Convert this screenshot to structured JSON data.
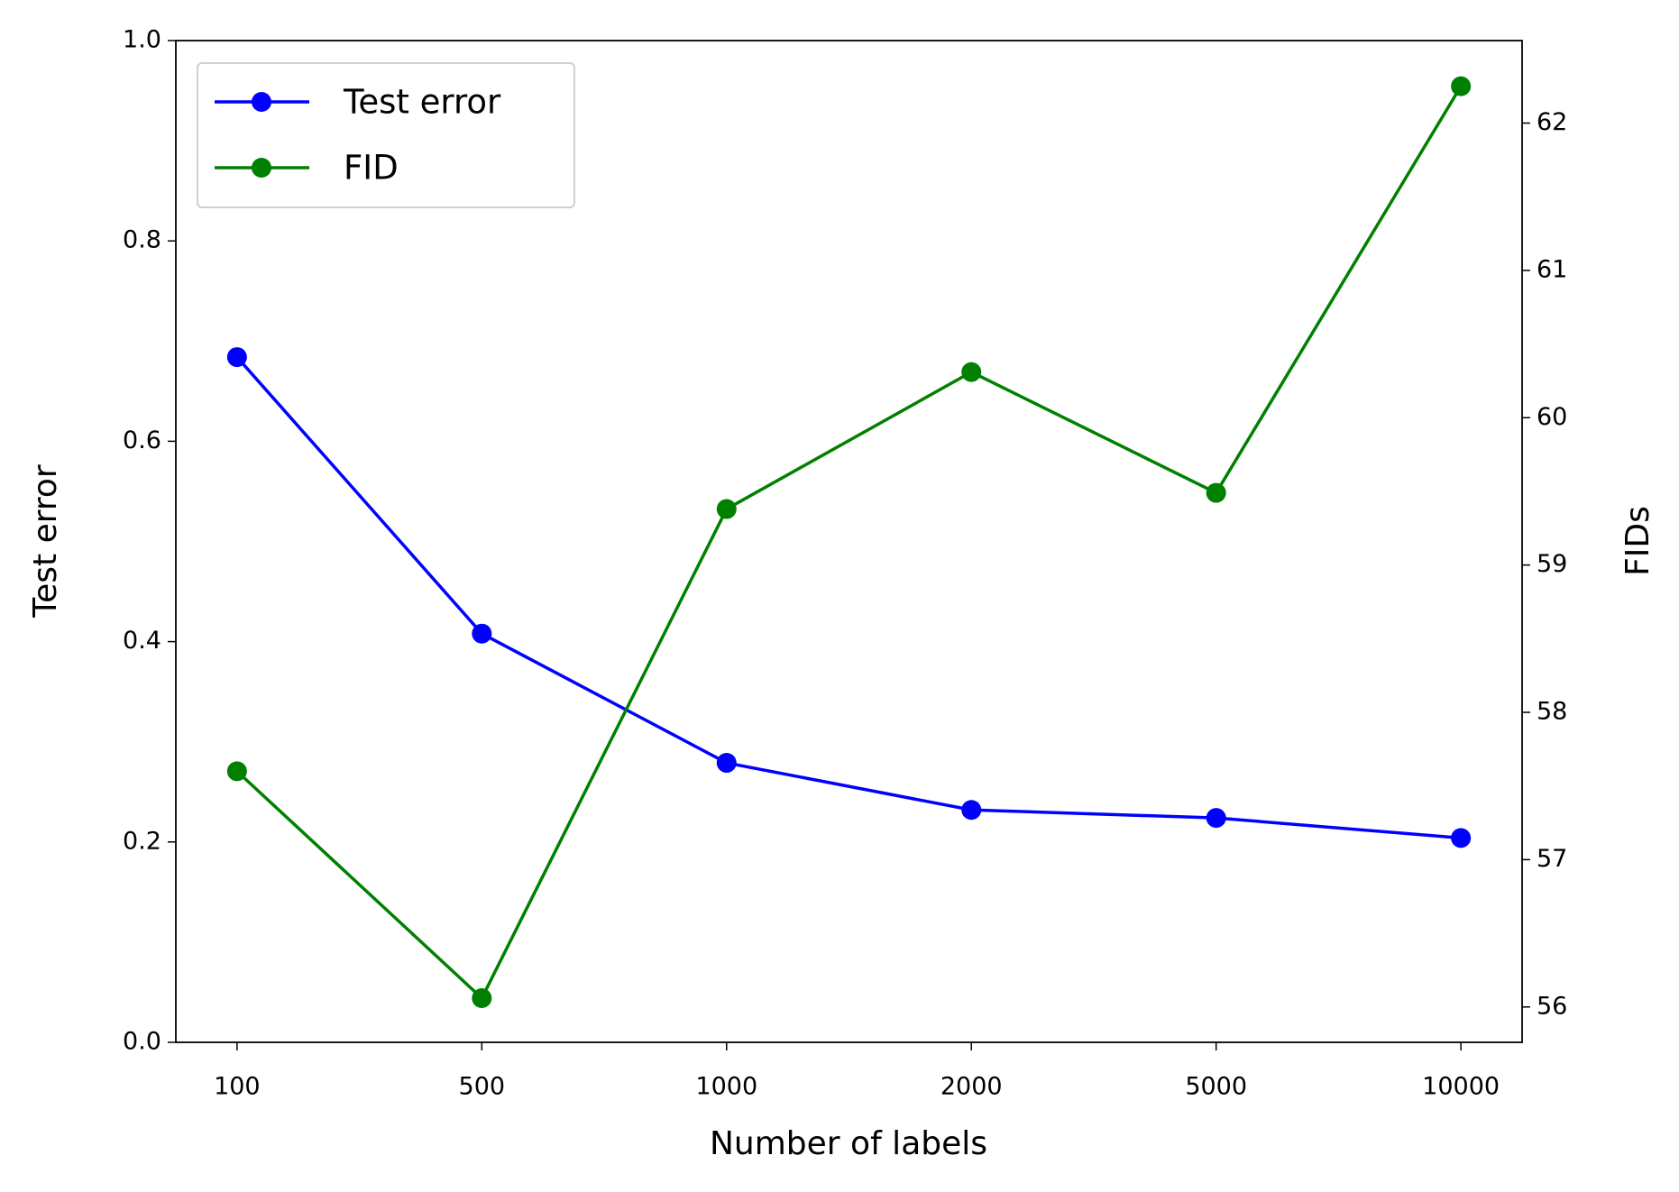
{
  "chart_data": {
    "type": "line",
    "xlabel": "Number of labels",
    "ylabel": "Test error",
    "y2label": "FIDs",
    "categories": [
      "100",
      "500",
      "1000",
      "2000",
      "5000",
      "10000"
    ],
    "series": [
      {
        "name": "Test error",
        "color": "#0000ff",
        "values": [
          0.684,
          0.408,
          0.279,
          0.232,
          0.224,
          0.204
        ]
      },
      {
        "name": "FID",
        "color": "#008000",
        "axis": "y2",
        "values": [
          57.6,
          56.06,
          59.38,
          60.31,
          59.49,
          62.25
        ]
      }
    ],
    "ylim": [
      0,
      1
    ],
    "yticks": [
      {
        "value": 0,
        "label": "0.0"
      },
      {
        "value": 0.2,
        "label": "0.2"
      },
      {
        "value": 0.4,
        "label": "0.4"
      },
      {
        "value": 0.6,
        "label": "0.6"
      },
      {
        "value": 0.8,
        "label": "0.8"
      },
      {
        "value": 1,
        "label": "1.0"
      }
    ],
    "y2lim": [
      55.76,
      62.56
    ],
    "y2ticks": [
      56,
      57,
      58,
      59,
      60,
      61,
      62
    ],
    "legend": "upper left",
    "grid": false
  }
}
